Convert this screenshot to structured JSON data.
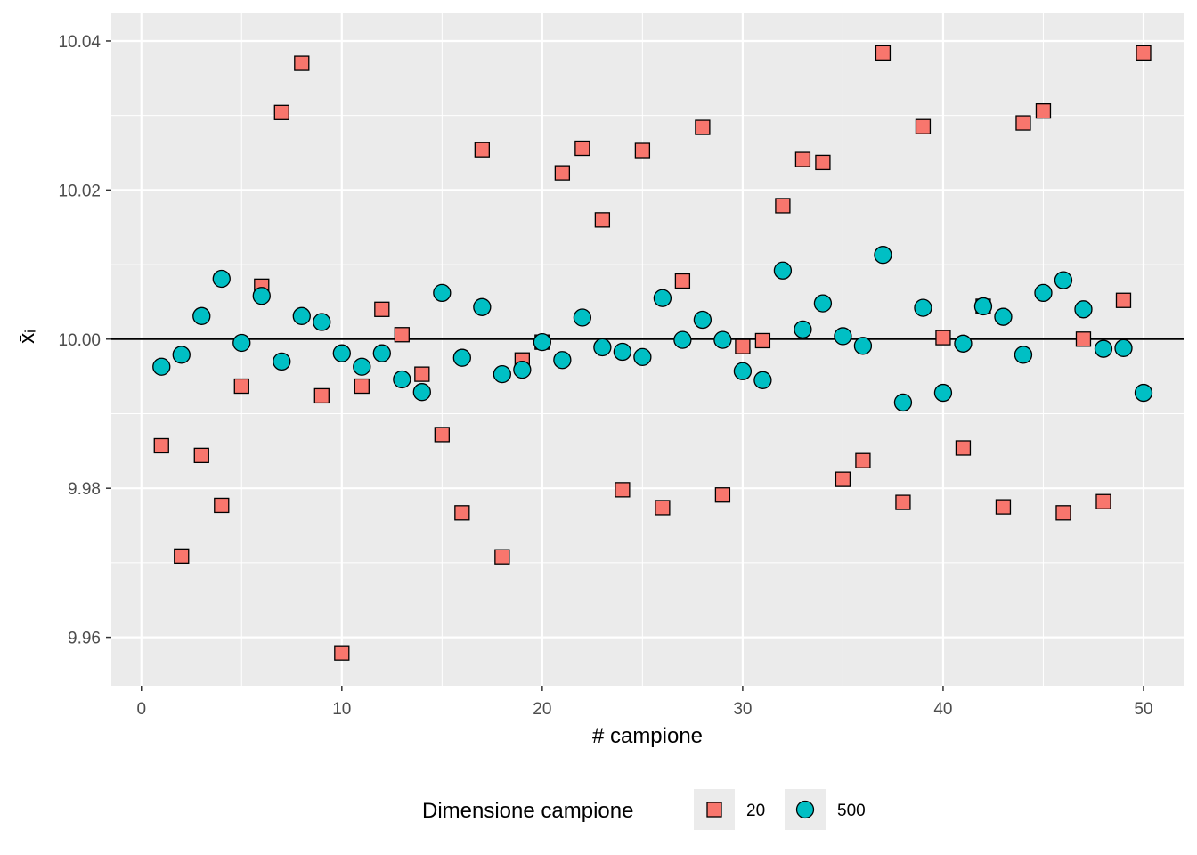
{
  "chart_data": {
    "type": "scatter",
    "xlabel": "# campione",
    "ylabel": "x̄ᵢ",
    "xlim": [
      -1.5,
      52
    ],
    "ylim": [
      9.9535,
      10.0437
    ],
    "x_ticks": [
      0,
      10,
      20,
      30,
      40,
      50
    ],
    "y_ticks": [
      9.96,
      9.98,
      10.0,
      10.02,
      10.04
    ],
    "y_tick_labels": [
      "9.96",
      "9.98",
      "10.00",
      "10.02",
      "10.04"
    ],
    "reference_line": 10.0,
    "grid": true,
    "legend": {
      "title": "Dimensione campione",
      "position": "bottom"
    },
    "x": [
      1,
      2,
      3,
      4,
      5,
      6,
      7,
      8,
      9,
      10,
      11,
      12,
      13,
      14,
      15,
      16,
      17,
      18,
      19,
      20,
      21,
      22,
      23,
      24,
      25,
      26,
      27,
      28,
      29,
      30,
      31,
      32,
      33,
      34,
      35,
      36,
      37,
      38,
      39,
      40,
      41,
      42,
      43,
      44,
      45,
      46,
      47,
      48,
      49,
      50
    ],
    "series": [
      {
        "name": "20",
        "shape": "square",
        "color": "#F8766D",
        "values": [
          9.9857,
          9.9709,
          9.9844,
          9.9777,
          9.9937,
          10.0071,
          10.0304,
          10.037,
          9.9924,
          9.9579,
          9.9937,
          10.004,
          10.0006,
          9.9953,
          9.9872,
          9.9767,
          10.0254,
          9.9708,
          9.9972,
          9.9996,
          10.0223,
          10.0256,
          10.016,
          9.9798,
          10.0253,
          9.9774,
          10.0078,
          10.0284,
          9.9791,
          9.999,
          9.9998,
          10.0179,
          10.0241,
          10.0237,
          9.9812,
          9.9837,
          10.0384,
          9.9781,
          10.0285,
          10.0002,
          9.9854,
          10.0044,
          9.9775,
          10.029,
          10.0306,
          9.9767,
          10.0,
          9.9782,
          10.0052,
          10.0384
        ]
      },
      {
        "name": "500",
        "shape": "circle",
        "color": "#00BFC4",
        "values": [
          9.9963,
          9.9979,
          10.0031,
          10.0081,
          9.9995,
          10.0058,
          9.997,
          10.0031,
          10.0023,
          9.9981,
          9.9963,
          9.9981,
          9.9946,
          9.9929,
          10.0062,
          9.9975,
          10.0043,
          9.9953,
          9.9959,
          9.9996,
          9.9972,
          10.0029,
          9.9989,
          9.9983,
          9.9976,
          10.0055,
          9.9999,
          10.0026,
          9.9999,
          9.9957,
          9.9945,
          10.0092,
          10.0013,
          10.0048,
          10.0004,
          9.9991,
          10.0113,
          9.9915,
          10.0042,
          9.9928,
          9.9994,
          10.0044,
          10.003,
          9.9979,
          10.0062,
          10.0079,
          10.004,
          9.9987,
          9.9988,
          9.9928
        ]
      }
    ]
  }
}
